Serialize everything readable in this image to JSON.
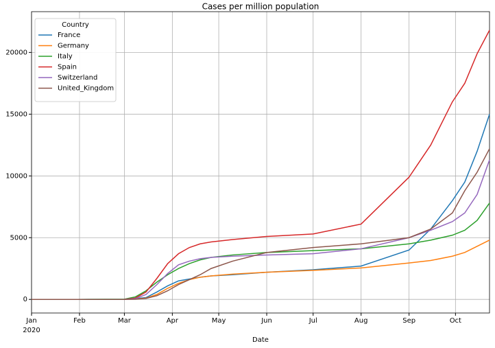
{
  "chart_data": {
    "type": "line",
    "title": "Cases per million population",
    "xlabel": "Date",
    "x_year_label": "2020",
    "legend_title": "Country",
    "legend": "upper left",
    "grid": true,
    "x": [
      0,
      30,
      60,
      67,
      74,
      81,
      88,
      95,
      102,
      109,
      116,
      130,
      152,
      182,
      213,
      244,
      258,
      272,
      280,
      288,
      296
    ],
    "xlim": [
      0,
      296
    ],
    "xticks": [
      {
        "value": 0,
        "label": "Jan"
      },
      {
        "value": 31,
        "label": "Feb"
      },
      {
        "value": 60,
        "label": "Mar"
      },
      {
        "value": 91,
        "label": "Apr"
      },
      {
        "value": 121,
        "label": "May"
      },
      {
        "value": 152,
        "label": "Jun"
      },
      {
        "value": 182,
        "label": "Jul"
      },
      {
        "value": 213,
        "label": "Aug"
      },
      {
        "value": 244,
        "label": "Sep"
      },
      {
        "value": 274,
        "label": "Oct"
      }
    ],
    "ylim": [
      -1100,
      23300
    ],
    "yticks": [
      0,
      5000,
      10000,
      15000,
      20000
    ],
    "series": [
      {
        "name": "France",
        "color": "#1f77b4",
        "values": [
          0,
          0,
          10,
          60,
          150,
          600,
          1100,
          1500,
          1650,
          1800,
          1900,
          2000,
          2200,
          2400,
          2700,
          4000,
          5700,
          8000,
          9500,
          12000,
          15000
        ]
      },
      {
        "name": "Germany",
        "color": "#ff7f0e",
        "values": [
          0,
          0,
          5,
          30,
          100,
          400,
          900,
          1300,
          1600,
          1800,
          1900,
          2050,
          2200,
          2350,
          2550,
          2950,
          3150,
          3500,
          3800,
          4300,
          4800
        ]
      },
      {
        "name": "Italy",
        "color": "#2ca02c",
        "values": [
          0,
          0,
          20,
          200,
          700,
          1400,
          2000,
          2500,
          2900,
          3200,
          3400,
          3600,
          3800,
          3950,
          4100,
          4500,
          4800,
          5200,
          5600,
          6400,
          7800
        ]
      },
      {
        "name": "Spain",
        "color": "#d62728",
        "values": [
          0,
          0,
          5,
          100,
          600,
          1700,
          2900,
          3700,
          4200,
          4500,
          4650,
          4850,
          5100,
          5300,
          6100,
          9900,
          12500,
          16000,
          17500,
          19900,
          21800
        ]
      },
      {
        "name": "Switzerland",
        "color": "#9467bd",
        "values": [
          0,
          0,
          5,
          50,
          400,
          1200,
          2100,
          2800,
          3100,
          3300,
          3400,
          3500,
          3600,
          3700,
          4100,
          5000,
          5600,
          6300,
          7000,
          8500,
          11300
        ]
      },
      {
        "name": "United_Kingdom",
        "color": "#8c564b",
        "values": [
          0,
          0,
          1,
          10,
          80,
          300,
          700,
          1200,
          1600,
          2000,
          2500,
          3100,
          3800,
          4200,
          4500,
          5000,
          5700,
          7000,
          8800,
          10300,
          12200
        ]
      }
    ]
  }
}
